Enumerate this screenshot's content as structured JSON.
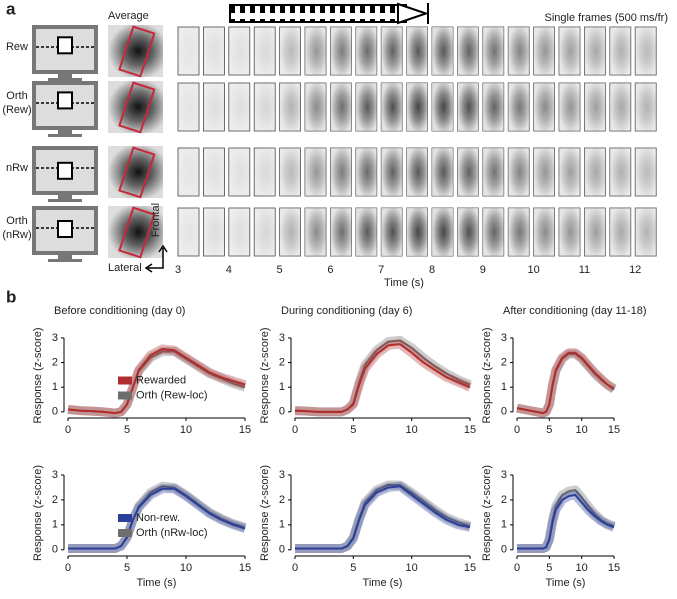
{
  "panel_a": {
    "label": "a",
    "average_label": "Average",
    "frames_label": "Single frames (500 ms/fr)",
    "row_labels": [
      [
        "Rew"
      ],
      [
        "Orth",
        "(Rew)"
      ],
      [
        "nRw"
      ],
      [
        "Orth",
        "(nRw)"
      ]
    ],
    "frontal_label": "Frontal",
    "lateral_label": "Lateral",
    "time_ticks": [
      3,
      4,
      5,
      6,
      7,
      8,
      9,
      10,
      11,
      12
    ],
    "time_label": "Time (s)"
  },
  "panel_b_label": "b",
  "chart_data": [
    {
      "type": "line",
      "title": "Before conditioning (day 0)",
      "ylabel": "Response (z-score)",
      "legend": "center right",
      "x": [
        0,
        1,
        2,
        3,
        4,
        4.5,
        5,
        5.5,
        6,
        7,
        8,
        9,
        10,
        11,
        12,
        13,
        14,
        15
      ],
      "xlim": [
        0,
        15
      ],
      "ylim": [
        -0.25,
        3.2
      ],
      "xticks": [
        0,
        5,
        10,
        15
      ],
      "yticks": [
        0,
        1,
        2,
        3
      ],
      "series": [
        {
          "name": "Rewarded",
          "color": "#b22d2d",
          "values": [
            0.1,
            0.05,
            0.03,
            0,
            -0.05,
            0,
            0.3,
            1.0,
            1.7,
            2.3,
            2.55,
            2.5,
            2.2,
            1.9,
            1.6,
            1.4,
            1.25,
            1.1
          ]
        },
        {
          "name": "Orth (Rew-loc)",
          "color": "#6e6e6e",
          "values": [
            0.1,
            0.05,
            0.03,
            0,
            -0.05,
            0,
            0.3,
            1.0,
            1.65,
            2.2,
            2.45,
            2.45,
            2.15,
            1.85,
            1.55,
            1.35,
            1.15,
            1.0
          ]
        }
      ]
    },
    {
      "type": "line",
      "title": "During conditioning (day 6)",
      "ylabel": "Response (z-score)",
      "x": [
        0,
        1,
        2,
        3,
        4,
        4.5,
        5,
        5.5,
        6,
        7,
        8,
        9,
        10,
        11,
        12,
        13,
        14,
        15
      ],
      "xlim": [
        0,
        15
      ],
      "ylim": [
        -0.25,
        3.2
      ],
      "xticks": [
        0,
        5,
        10,
        15
      ],
      "yticks": [
        0,
        1,
        2,
        3
      ],
      "series": [
        {
          "color": "#b22d2d",
          "values": [
            0.05,
            0.03,
            0,
            0,
            0,
            0.1,
            0.3,
            1.1,
            1.75,
            2.35,
            2.7,
            2.75,
            2.4,
            2.0,
            1.7,
            1.4,
            1.2,
            1.0
          ]
        },
        {
          "color": "#6e6e6e",
          "values": [
            0.05,
            0.03,
            0,
            0,
            0,
            0.1,
            0.35,
            1.2,
            1.9,
            2.5,
            2.85,
            2.9,
            2.6,
            2.2,
            1.85,
            1.55,
            1.3,
            1.1
          ]
        }
      ]
    },
    {
      "type": "line",
      "title": "After conditioning (day 11-18)",
      "ylabel": "Response (z-score)",
      "x": [
        0,
        1,
        2,
        3,
        4,
        4.5,
        5,
        5.5,
        6,
        7,
        8,
        9,
        10,
        11,
        12,
        13,
        14,
        15
      ],
      "xlim": [
        0,
        15
      ],
      "ylim": [
        -0.25,
        3.2
      ],
      "xticks": [
        0,
        5,
        10,
        15
      ],
      "yticks": [
        0,
        1,
        2,
        3
      ],
      "series": [
        {
          "color": "#b22d2d",
          "values": [
            0.15,
            0.1,
            0.05,
            0,
            -0.05,
            0,
            0.3,
            1.1,
            1.7,
            2.2,
            2.4,
            2.4,
            2.2,
            1.9,
            1.6,
            1.35,
            1.1,
            0.95
          ]
        },
        {
          "color": "#6e6e6e",
          "values": [
            0.15,
            0.1,
            0.05,
            0,
            -0.05,
            0,
            0.3,
            1.05,
            1.65,
            2.15,
            2.35,
            2.35,
            2.15,
            1.85,
            1.55,
            1.3,
            1.1,
            0.9
          ]
        }
      ]
    },
    {
      "type": "line",
      "ylabel": "Response (z-score)",
      "xlabel": "Time (s)",
      "legend": "center right",
      "x": [
        0,
        1,
        2,
        3,
        4,
        4.5,
        5,
        5.5,
        6,
        7,
        8,
        9,
        10,
        11,
        12,
        13,
        14,
        15
      ],
      "xlim": [
        0,
        15
      ],
      "ylim": [
        -0.25,
        3.2
      ],
      "xticks": [
        0,
        5,
        10,
        15
      ],
      "yticks": [
        0,
        1,
        2,
        3
      ],
      "series": [
        {
          "name": "Non-rew.",
          "color": "#2b3f9a",
          "values": [
            0.05,
            0.05,
            0.05,
            0.05,
            0.05,
            0.15,
            0.5,
            1.2,
            1.7,
            2.2,
            2.45,
            2.45,
            2.15,
            1.8,
            1.45,
            1.2,
            1.0,
            0.85
          ]
        },
        {
          "name": "Orth (nRw-loc)",
          "color": "#6e6e6e",
          "values": [
            0.05,
            0.05,
            0.05,
            0.05,
            0.05,
            0.15,
            0.5,
            1.2,
            1.75,
            2.3,
            2.55,
            2.5,
            2.2,
            1.85,
            1.5,
            1.25,
            1.05,
            0.9
          ]
        }
      ]
    },
    {
      "type": "line",
      "ylabel": "Response (z-score)",
      "xlabel": "Time (s)",
      "x": [
        0,
        1,
        2,
        3,
        4,
        4.5,
        5,
        5.5,
        6,
        7,
        8,
        9,
        10,
        11,
        12,
        13,
        14,
        15
      ],
      "xlim": [
        0,
        15
      ],
      "ylim": [
        -0.25,
        3.2
      ],
      "xticks": [
        0,
        5,
        10,
        15
      ],
      "yticks": [
        0,
        1,
        2,
        3
      ],
      "series": [
        {
          "color": "#2b3f9a",
          "values": [
            0.05,
            0.05,
            0.05,
            0.05,
            0.05,
            0.15,
            0.45,
            1.2,
            1.8,
            2.3,
            2.5,
            2.55,
            2.2,
            1.85,
            1.5,
            1.2,
            1.0,
            0.9
          ]
        },
        {
          "color": "#6e6e6e",
          "values": [
            0.05,
            0.05,
            0.05,
            0.05,
            0.05,
            0.15,
            0.5,
            1.25,
            1.9,
            2.4,
            2.6,
            2.6,
            2.3,
            1.95,
            1.6,
            1.3,
            1.1,
            0.95
          ]
        }
      ]
    },
    {
      "type": "line",
      "ylabel": "Response (z-score)",
      "xlabel": "Time (s)",
      "x": [
        0,
        1,
        2,
        3,
        4,
        4.5,
        5,
        5.5,
        6,
        7,
        8,
        9,
        10,
        11,
        12,
        13,
        14,
        15
      ],
      "xlim": [
        0,
        15
      ],
      "ylim": [
        -0.25,
        3.2
      ],
      "xticks": [
        0,
        5,
        10,
        15
      ],
      "yticks": [
        0,
        1,
        2,
        3
      ],
      "series": [
        {
          "color": "#2b3f9a",
          "values": [
            0.05,
            0.05,
            0.05,
            0.05,
            0.05,
            0.1,
            0.4,
            1.1,
            1.6,
            2.0,
            2.15,
            2.2,
            1.9,
            1.6,
            1.35,
            1.15,
            1.0,
            0.9
          ]
        },
        {
          "color": "#6e6e6e",
          "values": [
            0.05,
            0.05,
            0.05,
            0.05,
            0.05,
            0.1,
            0.45,
            1.2,
            1.75,
            2.2,
            2.35,
            2.4,
            2.1,
            1.75,
            1.45,
            1.2,
            1.05,
            0.95
          ]
        }
      ]
    }
  ]
}
